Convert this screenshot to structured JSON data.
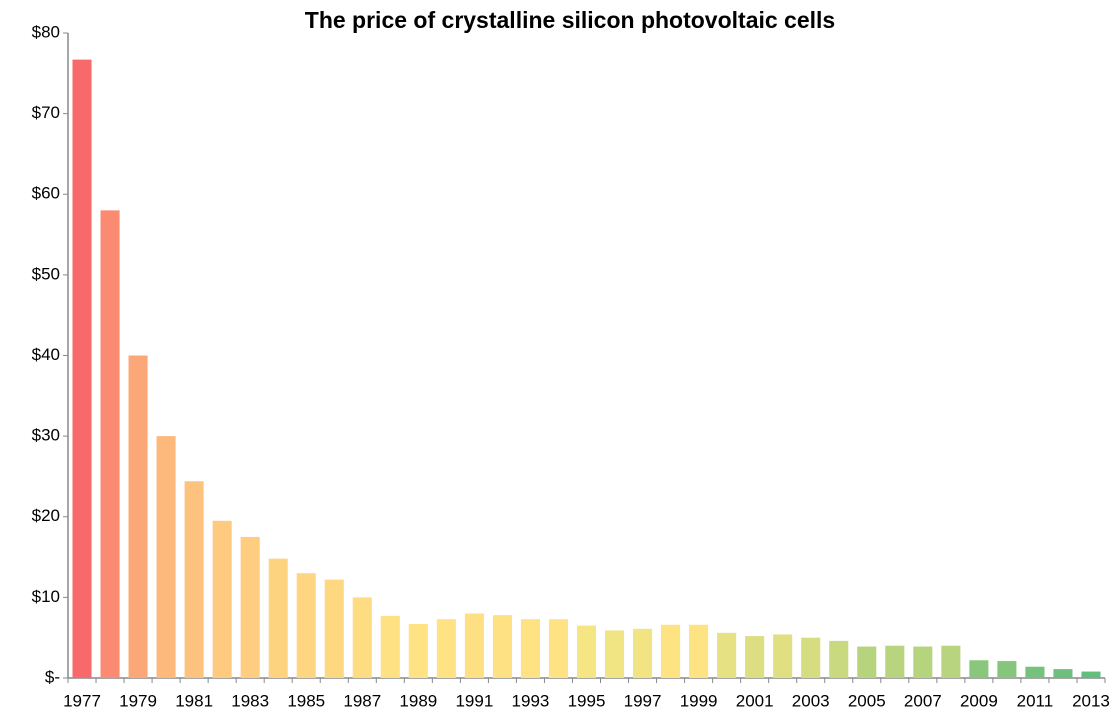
{
  "chart_data": {
    "type": "bar",
    "title": "The price of crystalline silicon photovoltaic cells",
    "categories": [
      "1977",
      null,
      "1979",
      null,
      "1981",
      null,
      "1983",
      null,
      "1985",
      null,
      "1987",
      null,
      "1989",
      null,
      "1991",
      null,
      "1993",
      null,
      "1995",
      null,
      "1997",
      null,
      "1999",
      null,
      "2001",
      null,
      "2003",
      null,
      "2005",
      null,
      "2007",
      null,
      "2009",
      null,
      "2011",
      null,
      "2013"
    ],
    "values": [
      76.7,
      58,
      40,
      30,
      24.4,
      19.5,
      17.5,
      14.8,
      13,
      12.2,
      10,
      7.7,
      6.7,
      7.3,
      8,
      7.8,
      7.3,
      7.3,
      6.5,
      5.9,
      6.1,
      6.6,
      6.6,
      5.6,
      5.2,
      5.4,
      5,
      4.6,
      3.9,
      4,
      3.9,
      4,
      2.2,
      2.1,
      1.4,
      1.1,
      0.8
    ],
    "colors": [
      "#f8696b",
      "#fa8a72",
      "#fca777",
      "#fdb87b",
      "#fdc27d",
      "#fdca7f",
      "#fecd80",
      "#fed380",
      "#fed681",
      "#fed881",
      "#fedc82",
      "#fee183",
      "#fee283",
      "#fee283",
      "#fee082",
      "#fee183",
      "#fee283",
      "#fee283",
      "#f5e583",
      "#f0e483",
      "#f2e483",
      "#fee383",
      "#fee383",
      "#e6e182",
      "#dcde81",
      "#e0df81",
      "#d6dc80",
      "#c9d980",
      "#b6d47e",
      "#b8d47e",
      "#b6d47e",
      "#b8d47e",
      "#88c77c",
      "#86c67c",
      "#74c27b",
      "#6cc07b",
      "#63be7b"
    ],
    "ylim": [
      0,
      80
    ],
    "yticks": [
      {
        "value": 0,
        "label": "$-"
      },
      {
        "value": 10,
        "label": "$10"
      },
      {
        "value": 20,
        "label": "$20"
      },
      {
        "value": 30,
        "label": "$30"
      },
      {
        "value": 40,
        "label": "$40"
      },
      {
        "value": 50,
        "label": "$50"
      },
      {
        "value": 60,
        "label": "$60"
      },
      {
        "value": 70,
        "label": "$70"
      },
      {
        "value": 80,
        "label": "$80"
      }
    ],
    "grid": false
  }
}
